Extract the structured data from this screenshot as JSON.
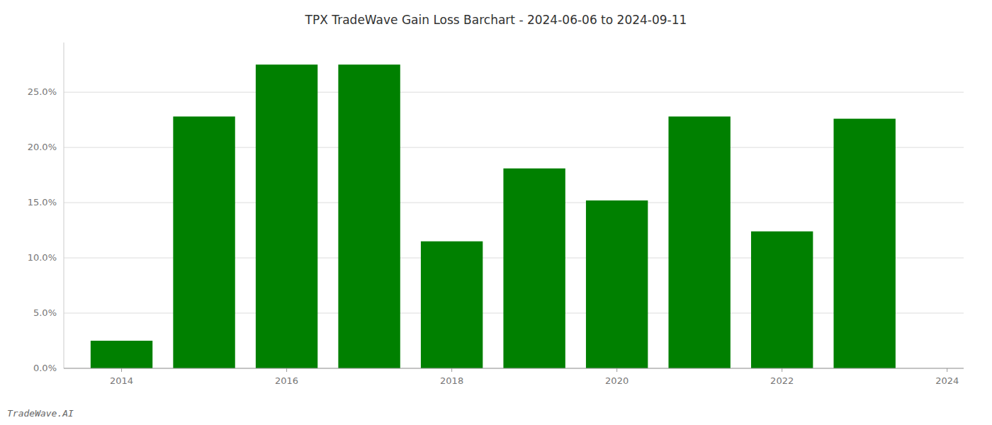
{
  "chart_data": {
    "type": "bar",
    "title": "TPX TradeWave Gain Loss Barchart - 2024-06-06 to 2024-09-11",
    "annotations": [
      "TradeWave.AI"
    ],
    "x": [
      2014,
      2015,
      2016,
      2017,
      2018,
      2019,
      2020,
      2021,
      2022,
      2023
    ],
    "values": [
      0.025,
      0.228,
      0.275,
      0.275,
      0.115,
      0.181,
      0.152,
      0.228,
      0.124,
      0.226
    ],
    "color": "#008000",
    "xlim": [
      2013.3,
      2024.2
    ],
    "xticks": [
      2014,
      2016,
      2018,
      2020,
      2022,
      2024
    ],
    "ylim": [
      0.0,
      0.295
    ],
    "yticks": [
      {
        "value": 0.0,
        "label": "0.0%"
      },
      {
        "value": 0.05,
        "label": "5.0%"
      },
      {
        "value": 0.1,
        "label": "10.0%"
      },
      {
        "value": 0.15,
        "label": "15.0%"
      },
      {
        "value": 0.2,
        "label": "20.0%"
      },
      {
        "value": 0.25,
        "label": "25.0%"
      }
    ],
    "grid": true
  }
}
